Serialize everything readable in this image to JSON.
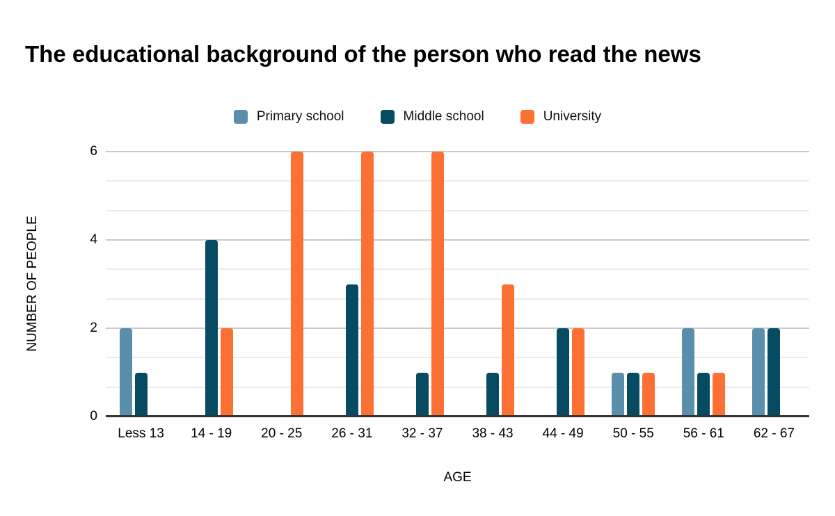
{
  "chart_data": {
    "type": "bar",
    "title": "The educational background of the person who read the news",
    "categories": [
      "Less 13",
      "14 - 19",
      "20 - 25",
      "26 - 31",
      "32 - 37",
      "38 - 43",
      "44 - 49",
      "50 - 55",
      "56 - 61",
      "62 - 67"
    ],
    "series": [
      {
        "name": "Primary school",
        "color": "#5a8fac",
        "values": [
          2,
          0,
          0,
          0,
          0,
          0,
          0,
          1,
          2,
          2
        ]
      },
      {
        "name": "Middle school",
        "color": "#074b63",
        "values": [
          1,
          4,
          0,
          3,
          1,
          1,
          2,
          1,
          1,
          2
        ]
      },
      {
        "name": "University",
        "color": "#fc7033",
        "values": [
          0,
          2,
          6,
          6,
          6,
          3,
          2,
          1,
          1,
          0
        ]
      }
    ],
    "xlabel": "AGE",
    "ylabel": "NUMBER OF PEOPLE",
    "ylim": [
      0,
      6
    ],
    "yticks": [
      0,
      2,
      4,
      6
    ],
    "grid": {
      "major_step": 2,
      "minor_lines_between_major": 2,
      "major_color": "#c9c9c9",
      "minor_color": "#ececec",
      "axis_line_color": "#333333"
    },
    "legend_position": "top-center",
    "background_color": "#ffffff"
  }
}
